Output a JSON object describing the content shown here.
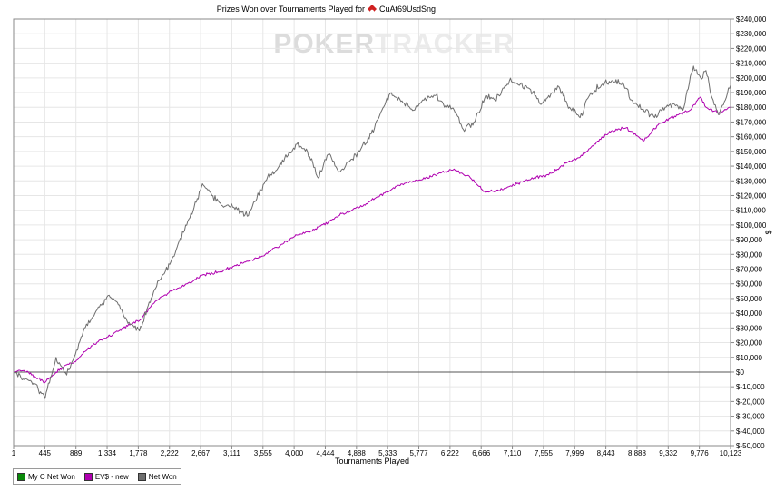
{
  "chart_data": {
    "type": "line",
    "title": "Prizes Won over Tournaments Played for",
    "player": "CuAt69UsdSng",
    "watermark": {
      "dark": "POKER",
      "light": "TRACKER"
    },
    "xlabel": "Tournaments Played",
    "ylabel": "$",
    "xlim": [
      1,
      10123
    ],
    "ylim": [
      -50000,
      240000
    ],
    "x_ticks": [
      "1",
      "445",
      "889",
      "1,334",
      "1,778",
      "2,222",
      "2,667",
      "3,111",
      "3,555",
      "4,000",
      "4,444",
      "4,888",
      "5,333",
      "5,777",
      "6,222",
      "6,666",
      "7,110",
      "7,555",
      "7,999",
      "8,443",
      "8,888",
      "9,332",
      "9,776",
      "10,123"
    ],
    "y_ticks": [
      "$240,000",
      "$230,000",
      "$220,000",
      "$210,000",
      "$200,000",
      "$190,000",
      "$180,000",
      "$170,000",
      "$160,000",
      "$150,000",
      "$140,000",
      "$130,000",
      "$120,000",
      "$110,000",
      "$100,000",
      "$90,000",
      "$80,000",
      "$70,000",
      "$60,000",
      "$50,000",
      "$40,000",
      "$30,000",
      "$20,000",
      "$10,000",
      "$0",
      "$-10,000",
      "$-20,000",
      "$-30,000",
      "$-40,000",
      "$-50,000"
    ],
    "grid": true,
    "legend_position": "bottom-left",
    "series": [
      {
        "name": "My C Net Won",
        "color": "#0a8a0a",
        "x": [],
        "y": []
      },
      {
        "name": "EV$ - new",
        "color": "#b000b0",
        "x": [
          1,
          150,
          300,
          445,
          600,
          750,
          889,
          1100,
          1334,
          1550,
          1778,
          2000,
          2222,
          2450,
          2667,
          2900,
          3111,
          3350,
          3555,
          3800,
          4000,
          4200,
          4444,
          4650,
          4888,
          5100,
          5333,
          5550,
          5777,
          6000,
          6222,
          6450,
          6666,
          6900,
          7110,
          7350,
          7555,
          7800,
          7999,
          8200,
          8443,
          8650,
          8888,
          9100,
          9332,
          9550,
          9700,
          9776,
          9950,
          10123
        ],
        "y": [
          0,
          1000,
          -3000,
          -7000,
          0,
          5000,
          8000,
          18000,
          24000,
          30000,
          35000,
          48000,
          55000,
          60000,
          66000,
          68000,
          72000,
          76000,
          80000,
          87000,
          93000,
          96000,
          102000,
          108000,
          112000,
          118000,
          124000,
          129000,
          131000,
          135000,
          138000,
          132000,
          122000,
          124000,
          128000,
          132000,
          134000,
          142000,
          146000,
          155000,
          164000,
          166000,
          157000,
          168000,
          174000,
          178000,
          187000,
          180000,
          176000,
          180000
        ]
      },
      {
        "name": "Net Won",
        "color": "#6e6e6e",
        "x": [
          1,
          150,
          300,
          445,
          600,
          750,
          889,
          1000,
          1150,
          1334,
          1450,
          1600,
          1778,
          1900,
          2050,
          2222,
          2400,
          2550,
          2667,
          2800,
          2950,
          3111,
          3300,
          3555,
          3750,
          4000,
          4150,
          4300,
          4444,
          4600,
          4888,
          5050,
          5200,
          5333,
          5500,
          5650,
          5777,
          5950,
          6100,
          6222,
          6350,
          6500,
          6666,
          6800,
          7000,
          7110,
          7300,
          7450,
          7555,
          7700,
          7850,
          7999,
          8150,
          8300,
          8443,
          8600,
          8750,
          8888,
          9050,
          9200,
          9332,
          9450,
          9600,
          9700,
          9776,
          9850,
          9950,
          10050,
          10123
        ],
        "y": [
          0,
          -5000,
          -8000,
          -18000,
          10000,
          -2000,
          15000,
          30000,
          40000,
          52000,
          48000,
          35000,
          28000,
          45000,
          62000,
          75000,
          95000,
          112000,
          128000,
          120000,
          113000,
          112000,
          106000,
          130000,
          140000,
          155000,
          150000,
          132000,
          148000,
          136000,
          150000,
          162000,
          178000,
          190000,
          183000,
          178000,
          185000,
          188000,
          181000,
          178000,
          165000,
          170000,
          188000,
          185000,
          198000,
          196000,
          192000,
          182000,
          188000,
          194000,
          180000,
          173000,
          190000,
          195000,
          198000,
          197000,
          183000,
          179000,
          173000,
          180000,
          182000,
          178000,
          208000,
          200000,
          205000,
          188000,
          175000,
          185000,
          195000
        ]
      }
    ]
  }
}
